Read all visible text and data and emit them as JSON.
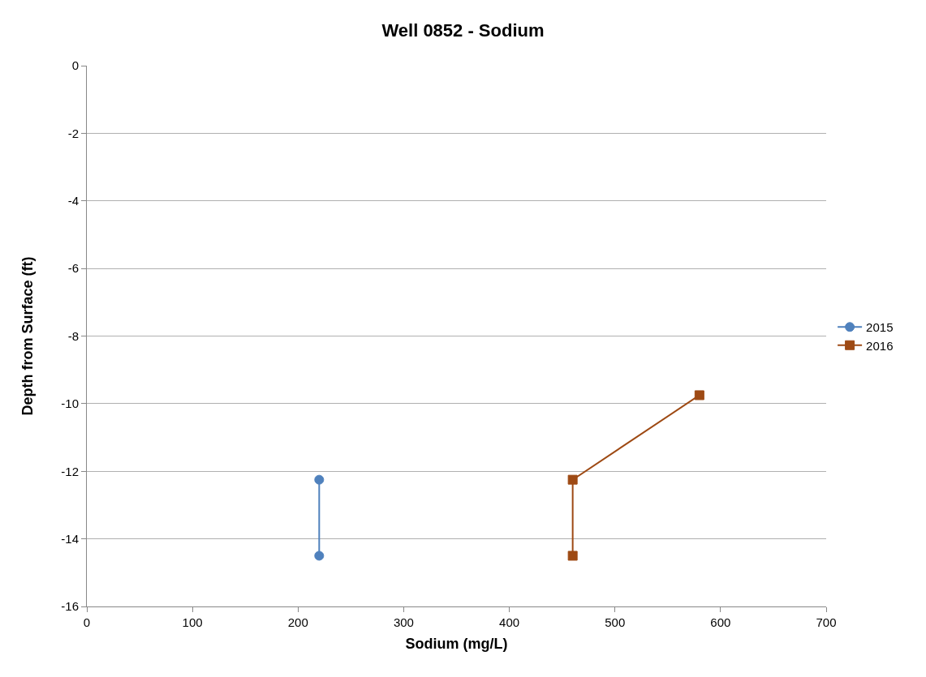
{
  "chart_data": {
    "type": "line",
    "title": "Well 0852 - Sodium",
    "xlabel": "Sodium (mg/L)",
    "ylabel": "Depth from Surface (ft)",
    "series": [
      {
        "name": "2015",
        "color": "#4f81bd",
        "marker": "circle",
        "x": [
          220,
          220
        ],
        "values": [
          -12.25,
          -14.5
        ]
      },
      {
        "name": "2016",
        "color": "#9e4a14",
        "marker": "square",
        "x": [
          580,
          460,
          460
        ],
        "values": [
          -9.75,
          -12.25,
          -14.5
        ]
      }
    ],
    "xlim": [
      0,
      700
    ],
    "xticks": [
      0,
      100,
      200,
      300,
      400,
      500,
      600,
      700
    ],
    "ylim": [
      -16,
      0
    ],
    "yticks": [
      -16,
      -14,
      -12,
      -10,
      -8,
      -6,
      -4,
      -2,
      0
    ],
    "grid": "y",
    "legend": "right",
    "line_style": "solid"
  }
}
